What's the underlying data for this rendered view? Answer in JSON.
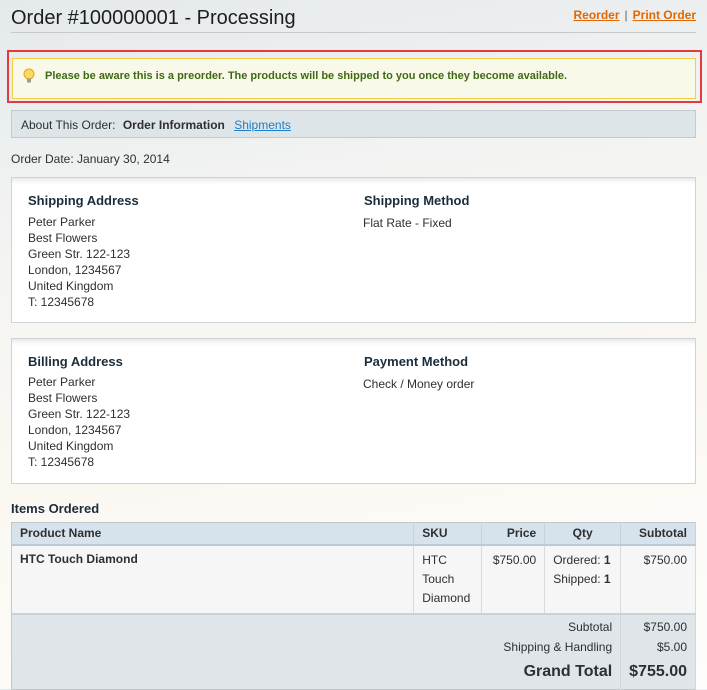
{
  "header": {
    "title": "Order #100000001 - Processing",
    "reorder": "Reorder",
    "separator": "|",
    "print": "Print Order"
  },
  "notice": {
    "icon": "lightbulb-icon",
    "text": "Please be aware this is a preorder. The products will be shipped to you once they become available."
  },
  "tabs": {
    "label": "About This Order:",
    "active": "Order Information",
    "link": "Shipments"
  },
  "order_date": "Order Date: January 30, 2014",
  "shipping": {
    "title": "Shipping Address",
    "lines": [
      "Peter Parker",
      "Best Flowers",
      "Green Str. 122-123",
      "London, 1234567",
      "United Kingdom",
      "T: 12345678"
    ],
    "method_title": "Shipping Method",
    "method": "Flat Rate - Fixed"
  },
  "billing": {
    "title": "Billing Address",
    "lines": [
      "Peter Parker",
      "Best Flowers",
      "Green Str. 122-123",
      "London, 1234567",
      "United Kingdom",
      "T: 12345678"
    ],
    "method_title": "Payment Method",
    "method": "Check / Money order"
  },
  "items": {
    "title": "Items Ordered",
    "columns": [
      "Product Name",
      "SKU",
      "Price",
      "Qty",
      "Subtotal"
    ],
    "rows": [
      {
        "name": "HTC Touch Diamond",
        "sku": [
          "HTC",
          "Touch",
          "Diamond"
        ],
        "price": "$750.00",
        "ordered_label": "Ordered:",
        "ordered": "1",
        "shipped_label": "Shipped:",
        "shipped": "1",
        "subtotal": "$750.00"
      }
    ],
    "totals": {
      "subtotal_label": "Subtotal",
      "subtotal": "$750.00",
      "shipping_label": "Shipping & Handling",
      "shipping": "$5.00",
      "grand_label": "Grand Total",
      "grand": "$755.00"
    }
  }
}
